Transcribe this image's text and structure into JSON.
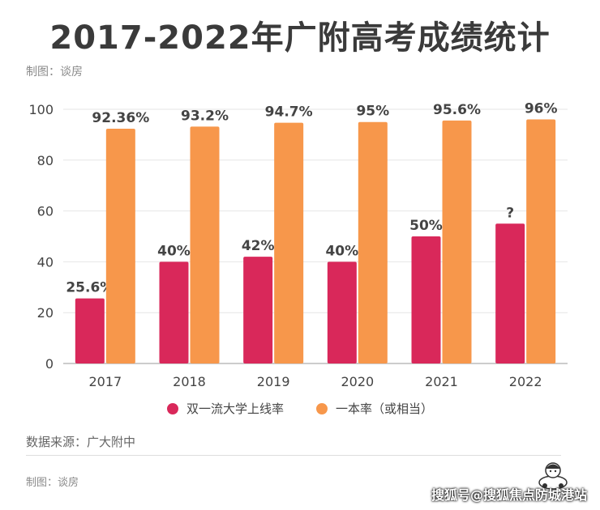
{
  "header": {
    "title": "2017-2022年广附高考成绩统计",
    "credit": "制图：谈房"
  },
  "chart_data": {
    "type": "bar",
    "categories": [
      "2017",
      "2018",
      "2019",
      "2020",
      "2021",
      "2022"
    ],
    "series": [
      {
        "name": "双一流大学上线率",
        "color": "#d9285a",
        "values": [
          25.6,
          40,
          42,
          40,
          50,
          55
        ],
        "labels": [
          "25.6%",
          "40%",
          "42%",
          "40%",
          "50%",
          "?"
        ]
      },
      {
        "name": "一本率（或相当）",
        "color": "#f7974b",
        "values": [
          92.36,
          93.2,
          94.7,
          95,
          95.6,
          96
        ],
        "labels": [
          "92.36%",
          "93.2%",
          "94.7%",
          "95%",
          "95.6%",
          "96%"
        ]
      }
    ],
    "ylim": [
      0,
      100
    ],
    "yticks": [
      0,
      20,
      40,
      60,
      80,
      100
    ],
    "grid": true,
    "legend_position": "bottom"
  },
  "footer": {
    "source": "数据来源：广大附中",
    "credit": "制图：谈房",
    "watermark": "搜狐号@搜狐焦点防城港站"
  },
  "colors": {
    "red": "#d9285a",
    "orange": "#f7974b"
  },
  "icons": {
    "mascot": "cartoon-person-icon"
  }
}
